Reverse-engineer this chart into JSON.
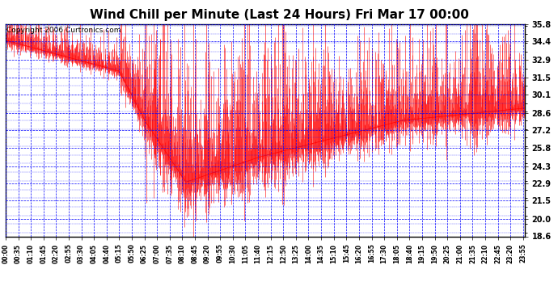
{
  "title": "Wind Chill per Minute (Last 24 Hours) Fri Mar 17 00:00",
  "copyright": "Copyright 2006 Curtronics.com",
  "ylabel_values": [
    35.8,
    34.4,
    32.9,
    31.5,
    30.1,
    28.6,
    27.2,
    25.8,
    24.3,
    22.9,
    21.5,
    20.0,
    18.6
  ],
  "ymin": 18.6,
  "ymax": 35.8,
  "line_color": "#FF0000",
  "grid_color": "#0000FF",
  "bg_color": "#FFFFFF",
  "title_fontsize": 11,
  "copyright_fontsize": 6.5,
  "x_tick_interval_minutes": 35,
  "total_minutes": 1440
}
